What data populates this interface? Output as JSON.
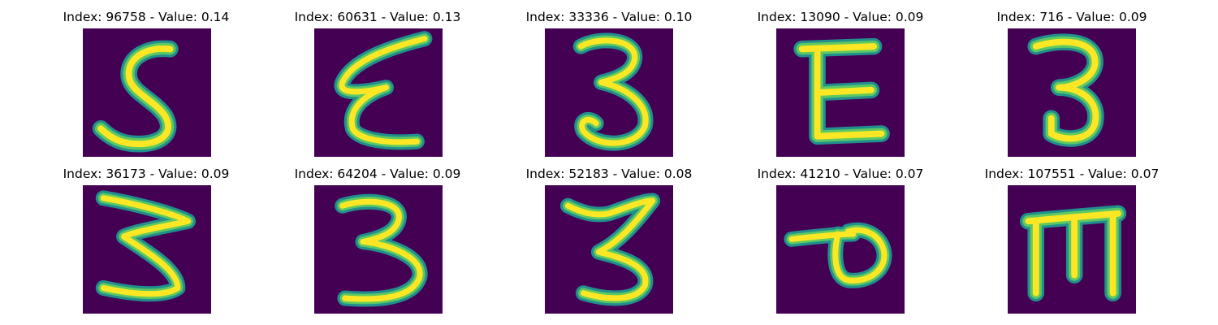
{
  "palette": {
    "background": "#440154",
    "edge": "#21908d",
    "mid": "#5ec962",
    "core": "#fde725"
  },
  "tiles": [
    {
      "title": "Index: 96758 - Value: 0.14",
      "glyph": "5-shape"
    },
    {
      "title": "Index: 60631 - Value: 0.13",
      "glyph": "slanted-epsilon"
    },
    {
      "title": "Index: 33336 - Value: 0.10",
      "glyph": "three"
    },
    {
      "title": "Index: 13090 - Value: 0.09",
      "glyph": "capital-e"
    },
    {
      "title": "Index: 716 - Value: 0.09",
      "glyph": "three"
    },
    {
      "title": "Index: 36173 - Value: 0.09",
      "glyph": "zigzag-three"
    },
    {
      "title": "Index: 64204 - Value: 0.09",
      "glyph": "three"
    },
    {
      "title": "Index: 52183 - Value: 0.08",
      "glyph": "three"
    },
    {
      "title": "Index: 41210 - Value: 0.07",
      "glyph": "rotated-p"
    },
    {
      "title": "Index: 107551 - Value: 0.07",
      "glyph": "rotated-m"
    }
  ]
}
